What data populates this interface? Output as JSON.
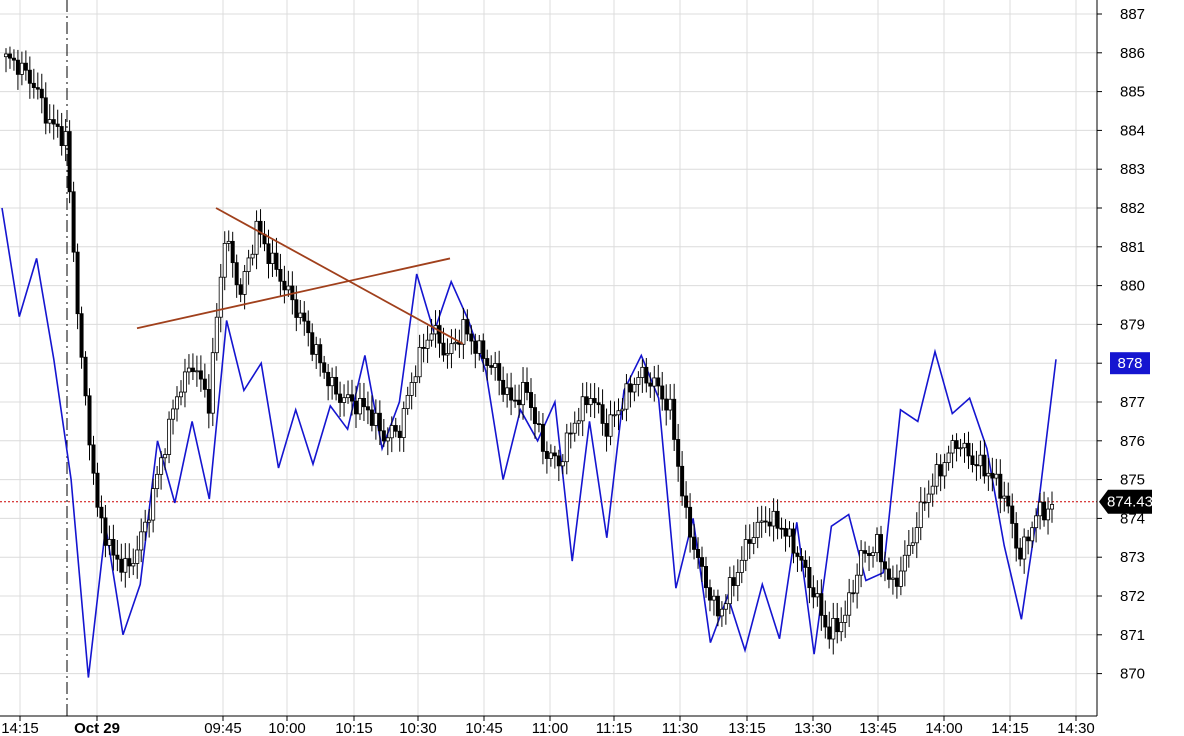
{
  "chart_data": {
    "type": "candlestick",
    "y_axis": {
      "side": "right",
      "ylim": [
        869.1,
        887.4
      ],
      "ticks": [
        870,
        871,
        872,
        873,
        874,
        875,
        876,
        877,
        878,
        879,
        880,
        881,
        882,
        883,
        884,
        885,
        886,
        887
      ]
    },
    "x_axis": {
      "ticks": [
        {
          "label": "14:15",
          "bold": false
        },
        {
          "label": "Oct 29",
          "bold": true
        },
        {
          "label": "09:45",
          "bold": false
        },
        {
          "label": "10:00",
          "bold": false
        },
        {
          "label": "10:15",
          "bold": false
        },
        {
          "label": "10:30",
          "bold": false
        },
        {
          "label": "10:45",
          "bold": false
        },
        {
          "label": "11:00",
          "bold": false
        },
        {
          "label": "11:15",
          "bold": false
        },
        {
          "label": "11:30",
          "bold": false
        },
        {
          "label": "13:15",
          "bold": false
        },
        {
          "label": "13:30",
          "bold": false
        },
        {
          "label": "13:45",
          "bold": false
        },
        {
          "label": "14:00",
          "bold": false
        },
        {
          "label": "14:15",
          "bold": false
        },
        {
          "label": "14:30",
          "bold": false
        }
      ],
      "session_break_after": "14:15"
    },
    "grid": true,
    "reference_line": {
      "value": 874.43,
      "label": "874.43",
      "color": "#cc0000",
      "style": "dotted"
    },
    "last_value_badge": {
      "value": 878,
      "label": "878",
      "color": "#1515d0"
    },
    "price_series": {
      "color_up": "#ffffff",
      "color_down": "#000000",
      "close_path": [
        885.9,
        885.7,
        885.2,
        884.2,
        883.8,
        878.0,
        874.2,
        873.0,
        872.7,
        873.8,
        875.5,
        877.2,
        878.0,
        877.0,
        881.3,
        879.8,
        881.5,
        880.6,
        879.8,
        879.0,
        878.0,
        877.2,
        877.0,
        876.8,
        876.1,
        876.3,
        877.9,
        878.9,
        878.2,
        878.9,
        878.3,
        877.8,
        877.0,
        877.3,
        875.8,
        875.4,
        876.5,
        877.2,
        876.3,
        877.0,
        877.7,
        877.5,
        876.8,
        874.0,
        872.6,
        871.5,
        872.4,
        873.5,
        874.0,
        873.8,
        873.1,
        872.1,
        871.0,
        871.5,
        873.0,
        873.3,
        872.2,
        873.2,
        874.5,
        875.3,
        876.0,
        875.5,
        875.2,
        874.6,
        873.0,
        874.1,
        874.3
      ]
    },
    "comparison_series": {
      "color": "#1515d0",
      "path": [
        882.0,
        879.2,
        880.7,
        878.1,
        875.0,
        869.9,
        873.8,
        871.0,
        872.3,
        876.0,
        874.4,
        876.5,
        874.5,
        879.1,
        877.3,
        878.0,
        875.3,
        876.8,
        875.4,
        876.9,
        876.3,
        878.2,
        875.8,
        877.0,
        880.3,
        878.8,
        880.1,
        879.1,
        877.8,
        875.0,
        876.8,
        876.0,
        877.0,
        872.9,
        876.5,
        873.5,
        877.3,
        878.2,
        877.1,
        872.2,
        874.0,
        870.8,
        872.0,
        870.6,
        872.3,
        870.9,
        873.9,
        870.5,
        873.8,
        874.1,
        872.4,
        872.6,
        876.8,
        876.5,
        878.3,
        876.7,
        877.1,
        875.8,
        873.3,
        871.4,
        874.4,
        878.1
      ]
    },
    "trendlines": [
      {
        "color": "#a0401c",
        "from": {
          "x": "09:30",
          "y": 878.9
        },
        "to": {
          "x": "10:45",
          "y": 880.7
        }
      },
      {
        "color": "#a0401c",
        "from": {
          "x": "09:50",
          "y": 882.0
        },
        "to": {
          "x": "10:45",
          "y": 878.5
        }
      }
    ]
  }
}
